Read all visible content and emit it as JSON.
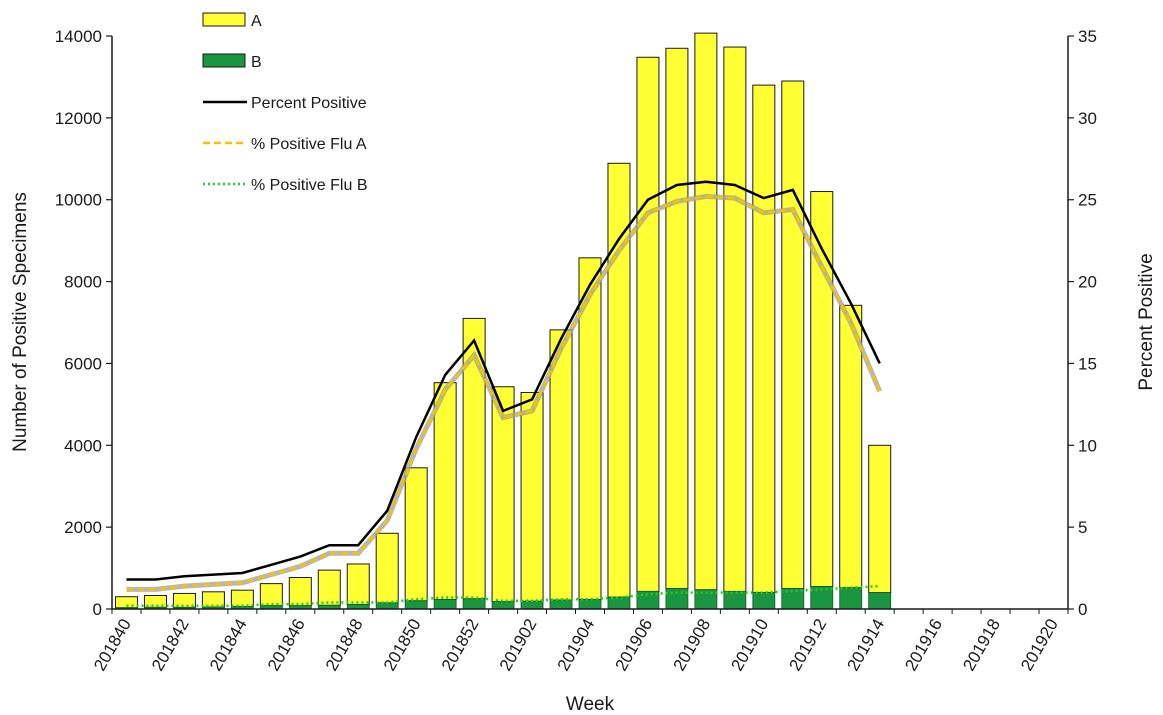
{
  "chart_data": {
    "type": "bar",
    "title": "",
    "xlabel": "Week",
    "ylabel": "Number of Positive Specimens",
    "y2label": "Percent Positive",
    "ylim": [
      0,
      14000
    ],
    "y2lim": [
      0,
      35
    ],
    "yticks": [
      0,
      2000,
      4000,
      6000,
      8000,
      10000,
      12000,
      14000
    ],
    "y2ticks": [
      0,
      5,
      10,
      15,
      20,
      25,
      30,
      35
    ],
    "stacked": true,
    "legend_position": "top-left",
    "grid": false,
    "x": [
      "201840",
      "201841",
      "201842",
      "201843",
      "201844",
      "201845",
      "201846",
      "201847",
      "201848",
      "201849",
      "201850",
      "201851",
      "201852",
      "201901",
      "201902",
      "201903",
      "201904",
      "201905",
      "201906",
      "201907",
      "201908",
      "201909",
      "201910",
      "201911",
      "201912",
      "201913",
      "201914",
      "201915",
      "201916",
      "201917",
      "201918",
      "201919",
      "201920"
    ],
    "x_tick_labels": [
      "201840",
      "201842",
      "201844",
      "201846",
      "201848",
      "201850",
      "201852",
      "201902",
      "201904",
      "201906",
      "201908",
      "201910",
      "201912",
      "201914",
      "201916",
      "201918",
      "201920"
    ],
    "bar_series": [
      {
        "name": "A",
        "color": "#ffff33",
        "values": [
          270,
          290,
          340,
          370,
          400,
          540,
          690,
          860,
          990,
          1700,
          3250,
          5300,
          6850,
          5250,
          5100,
          6600,
          8350,
          10600,
          13050,
          13200,
          13600,
          13300,
          12400,
          12400,
          9650,
          6900,
          3600,
          null,
          null,
          null,
          null,
          null,
          null
        ]
      },
      {
        "name": "B",
        "color": "#1a9641",
        "values": [
          30,
          40,
          40,
          50,
          60,
          80,
          80,
          90,
          110,
          150,
          200,
          230,
          250,
          180,
          190,
          220,
          230,
          290,
          430,
          500,
          470,
          430,
          400,
          500,
          550,
          520,
          400,
          null,
          null,
          null,
          null,
          null,
          null
        ]
      }
    ],
    "line_series": [
      {
        "name": "Percent Positive",
        "color": "#000000",
        "style": "solid",
        "values": [
          1.8,
          1.8,
          2.0,
          2.1,
          2.2,
          2.7,
          3.2,
          3.9,
          3.9,
          6.0,
          10.5,
          14.3,
          16.4,
          12.1,
          12.8,
          16.5,
          19.8,
          22.6,
          25.0,
          25.9,
          26.1,
          25.9,
          25.1,
          25.6,
          22.0,
          18.7,
          15.0,
          null,
          null,
          null,
          null,
          null,
          null
        ]
      },
      {
        "name": "% Positive Flu A",
        "color": "#f5c400",
        "style": "dashed",
        "values": [
          1.2,
          1.2,
          1.4,
          1.5,
          1.6,
          2.1,
          2.6,
          3.4,
          3.4,
          5.4,
          9.8,
          13.4,
          15.5,
          11.7,
          12.1,
          15.9,
          19.2,
          21.9,
          24.2,
          24.9,
          25.2,
          25.1,
          24.2,
          24.4,
          20.9,
          17.5,
          13.3,
          null,
          null,
          null,
          null,
          null,
          null
        ]
      },
      {
        "name": "% Positive Flu B",
        "color": "#22cc22",
        "style": "dotted",
        "values": [
          0.2,
          0.2,
          0.2,
          0.2,
          0.2,
          0.3,
          0.3,
          0.4,
          0.4,
          0.4,
          0.6,
          0.7,
          0.7,
          0.5,
          0.5,
          0.6,
          0.6,
          0.7,
          0.9,
          1.0,
          1.0,
          1.0,
          1.0,
          1.1,
          1.2,
          1.3,
          1.4,
          null,
          null,
          null,
          null,
          null,
          null
        ]
      }
    ]
  }
}
